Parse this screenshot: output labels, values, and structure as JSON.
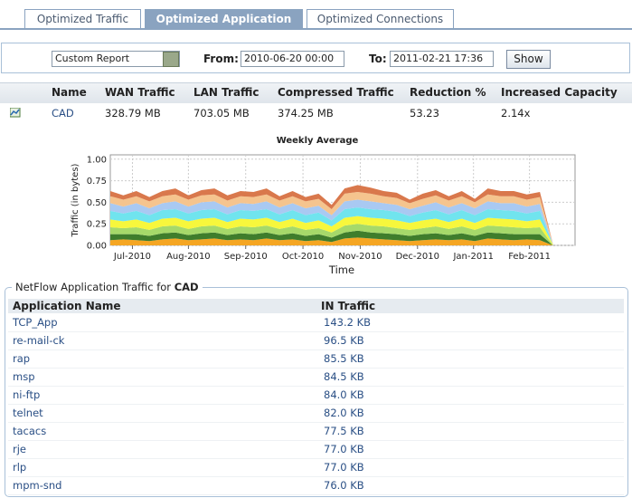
{
  "tabs": {
    "items": [
      "Optimized Traffic",
      "Optimized Application",
      "Optimized Connections"
    ],
    "active": 1
  },
  "report": {
    "select": "Custom Report",
    "from_label": "From:",
    "from": "2010-06-20 00:00",
    "to_label": "To:",
    "to": "2011-02-21 17:36",
    "button": "Show"
  },
  "summary": {
    "headers": [
      "Name",
      "WAN Traffic",
      "LAN Traffic",
      "Compressed Traffic",
      "Reduction %",
      "Increased Capacity"
    ],
    "rows": [
      [
        "CAD",
        "328.79 MB",
        "703.05 MB",
        "374.25 MB",
        "53.23",
        "2.14x"
      ]
    ]
  },
  "chart_data": {
    "type": "stacked-area",
    "title": "Weekly Average",
    "x_label": "Time",
    "y_label": "Traffic (in bytes)",
    "x": [
      0,
      1,
      2,
      3,
      4,
      5,
      6,
      7,
      8,
      9,
      10,
      11,
      12,
      13,
      14,
      15,
      16,
      17,
      18,
      19,
      20,
      21,
      22,
      23,
      24,
      25,
      26,
      27,
      28,
      29,
      30,
      31,
      32,
      33,
      34
    ],
    "xlim": [
      0,
      35.7
    ],
    "xticks": [
      {
        "value": 1.7,
        "label": "Jul-2010"
      },
      {
        "value": 6.0,
        "label": "Aug-2010"
      },
      {
        "value": 10.4,
        "label": "Sep-2010"
      },
      {
        "value": 14.8,
        "label": "Oct-2010"
      },
      {
        "value": 19.2,
        "label": "Nov-2010"
      },
      {
        "value": 23.6,
        "label": "Dec-2010"
      },
      {
        "value": 27.9,
        "label": "Jan-2011"
      },
      {
        "value": 32.2,
        "label": "Feb-2011"
      }
    ],
    "ylim": [
      0,
      1.05
    ],
    "yticks": [
      {
        "value": 0,
        "label": "0.00"
      },
      0.25,
      {
        "value": 0.5,
        "label": "0.50"
      },
      0.75,
      {
        "value": 1,
        "label": "1.00"
      }
    ],
    "grid": true,
    "series": [
      {
        "color": "#f5a623",
        "values": [
          0.06,
          0.07,
          0.06,
          0.05,
          0.07,
          0.08,
          0.06,
          0.07,
          0.08,
          0.06,
          0.07,
          0.06,
          0.08,
          0.06,
          0.07,
          0.05,
          0.06,
          0.04,
          0.08,
          0.09,
          0.08,
          0.07,
          0.06,
          0.05,
          0.06,
          0.07,
          0.06,
          0.07,
          0.05,
          0.08,
          0.07,
          0.06,
          0.07,
          0.06,
          0.0
        ]
      },
      {
        "color": "#3f7d2c",
        "values": [
          0.07,
          0.06,
          0.07,
          0.06,
          0.07,
          0.07,
          0.06,
          0.07,
          0.07,
          0.06,
          0.07,
          0.07,
          0.07,
          0.06,
          0.07,
          0.06,
          0.07,
          0.05,
          0.07,
          0.08,
          0.07,
          0.07,
          0.07,
          0.06,
          0.07,
          0.07,
          0.06,
          0.07,
          0.06,
          0.07,
          0.07,
          0.07,
          0.06,
          0.07,
          0.0
        ]
      },
      {
        "color": "#a6d96a",
        "values": [
          0.08,
          0.07,
          0.08,
          0.07,
          0.08,
          0.08,
          0.07,
          0.08,
          0.08,
          0.07,
          0.08,
          0.08,
          0.08,
          0.07,
          0.08,
          0.07,
          0.07,
          0.06,
          0.08,
          0.08,
          0.08,
          0.08,
          0.07,
          0.07,
          0.07,
          0.08,
          0.07,
          0.08,
          0.07,
          0.08,
          0.08,
          0.08,
          0.07,
          0.08,
          0.0
        ]
      },
      {
        "color": "#f7f73c",
        "values": [
          0.09,
          0.08,
          0.09,
          0.08,
          0.09,
          0.09,
          0.09,
          0.09,
          0.09,
          0.08,
          0.09,
          0.09,
          0.09,
          0.08,
          0.09,
          0.08,
          0.09,
          0.07,
          0.09,
          0.09,
          0.09,
          0.09,
          0.09,
          0.08,
          0.09,
          0.09,
          0.08,
          0.09,
          0.08,
          0.09,
          0.09,
          0.09,
          0.08,
          0.09,
          0.01
        ]
      },
      {
        "color": "#70e4ee",
        "values": [
          0.1,
          0.09,
          0.1,
          0.09,
          0.1,
          0.1,
          0.09,
          0.1,
          0.1,
          0.09,
          0.1,
          0.1,
          0.1,
          0.09,
          0.1,
          0.09,
          0.09,
          0.07,
          0.1,
          0.1,
          0.1,
          0.1,
          0.1,
          0.08,
          0.09,
          0.1,
          0.09,
          0.1,
          0.09,
          0.1,
          0.1,
          0.1,
          0.09,
          0.1,
          0.0
        ]
      },
      {
        "color": "#a9c9f2",
        "values": [
          0.09,
          0.08,
          0.09,
          0.08,
          0.08,
          0.09,
          0.08,
          0.09,
          0.09,
          0.08,
          0.08,
          0.08,
          0.09,
          0.08,
          0.08,
          0.08,
          0.08,
          0.06,
          0.09,
          0.09,
          0.09,
          0.08,
          0.08,
          0.08,
          0.08,
          0.09,
          0.08,
          0.08,
          0.08,
          0.09,
          0.08,
          0.09,
          0.08,
          0.08,
          0.0
        ]
      },
      {
        "color": "#f5c48e",
        "values": [
          0.08,
          0.08,
          0.08,
          0.08,
          0.08,
          0.08,
          0.08,
          0.08,
          0.08,
          0.08,
          0.08,
          0.08,
          0.08,
          0.08,
          0.08,
          0.08,
          0.08,
          0.07,
          0.09,
          0.09,
          0.09,
          0.08,
          0.08,
          0.07,
          0.08,
          0.08,
          0.08,
          0.08,
          0.07,
          0.08,
          0.08,
          0.08,
          0.08,
          0.08,
          0.01
        ]
      },
      {
        "color": "#d9784c",
        "values": [
          0.06,
          0.05,
          0.06,
          0.05,
          0.06,
          0.07,
          0.05,
          0.06,
          0.07,
          0.06,
          0.06,
          0.06,
          0.07,
          0.05,
          0.06,
          0.05,
          0.06,
          0.05,
          0.06,
          0.08,
          0.07,
          0.06,
          0.06,
          0.04,
          0.06,
          0.06,
          0.05,
          0.06,
          0.04,
          0.07,
          0.06,
          0.06,
          0.06,
          0.06,
          0.0
        ]
      }
    ]
  },
  "netflow": {
    "legend_prefix": "NetFlow Application Traffic for",
    "legend_app": "CAD",
    "headers": [
      "Application Name",
      "IN Traffic"
    ],
    "rows": [
      [
        "TCP_App",
        "143.2 KB"
      ],
      [
        "re-mail-ck",
        "96.5 KB"
      ],
      [
        "rap",
        "85.5 KB"
      ],
      [
        "msp",
        "84.5 KB"
      ],
      [
        "ni-ftp",
        "84.0 KB"
      ],
      [
        "telnet",
        "82.0 KB"
      ],
      [
        "tacacs",
        "77.5 KB"
      ],
      [
        "rje",
        "77.0 KB"
      ],
      [
        "rlp",
        "77.0 KB"
      ],
      [
        "mpm-snd",
        "76.0 KB"
      ]
    ]
  }
}
